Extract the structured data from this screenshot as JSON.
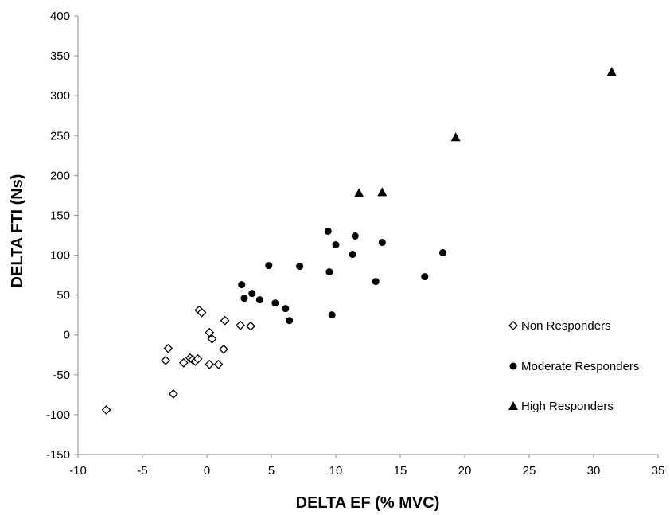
{
  "chart_data": {
    "type": "scatter",
    "title": "",
    "xlabel": "DELTA EF (% MVC)",
    "ylabel": "DELTA FTI (Ns)",
    "xlim": [
      -10,
      35
    ],
    "ylim": [
      -150,
      400
    ],
    "xticks": [
      -10,
      -5,
      0,
      5,
      10,
      15,
      20,
      25,
      30,
      35
    ],
    "yticks": [
      -150,
      -100,
      -50,
      0,
      50,
      100,
      150,
      200,
      250,
      300,
      350,
      400
    ],
    "grid": false,
    "legend_position": "right",
    "series": [
      {
        "name": "Non Responders",
        "marker": "diamond-open",
        "color": "#000000",
        "points": [
          [
            -7.8,
            -94
          ],
          [
            -2.6,
            -74
          ],
          [
            -3.2,
            -32
          ],
          [
            -3.0,
            -17
          ],
          [
            -1.8,
            -35
          ],
          [
            -1.3,
            -29
          ],
          [
            -1.1,
            -31
          ],
          [
            -0.9,
            -33
          ],
          [
            -0.7,
            -30
          ],
          [
            -0.6,
            31
          ],
          [
            -0.4,
            28
          ],
          [
            0.2,
            3
          ],
          [
            0.4,
            -5
          ],
          [
            0.2,
            -37
          ],
          [
            0.9,
            -37
          ],
          [
            1.3,
            -18
          ],
          [
            1.4,
            18
          ],
          [
            2.6,
            12
          ],
          [
            3.4,
            11
          ]
        ]
      },
      {
        "name": "Moderate Responders",
        "marker": "circle",
        "color": "#000000",
        "points": [
          [
            2.7,
            63
          ],
          [
            2.9,
            46
          ],
          [
            3.5,
            52
          ],
          [
            4.1,
            44
          ],
          [
            4.8,
            87
          ],
          [
            5.3,
            40
          ],
          [
            6.1,
            33
          ],
          [
            6.4,
            18
          ],
          [
            7.2,
            86
          ],
          [
            9.4,
            130
          ],
          [
            9.5,
            79
          ],
          [
            9.7,
            25
          ],
          [
            10.0,
            113
          ],
          [
            11.3,
            101
          ],
          [
            11.5,
            124
          ],
          [
            13.1,
            67
          ],
          [
            13.6,
            116
          ],
          [
            16.9,
            73
          ],
          [
            18.3,
            103
          ]
        ]
      },
      {
        "name": "High Responders",
        "marker": "triangle",
        "color": "#000000",
        "points": [
          [
            11.8,
            178
          ],
          [
            13.6,
            179
          ],
          [
            19.3,
            248
          ],
          [
            31.4,
            330
          ]
        ]
      }
    ]
  }
}
